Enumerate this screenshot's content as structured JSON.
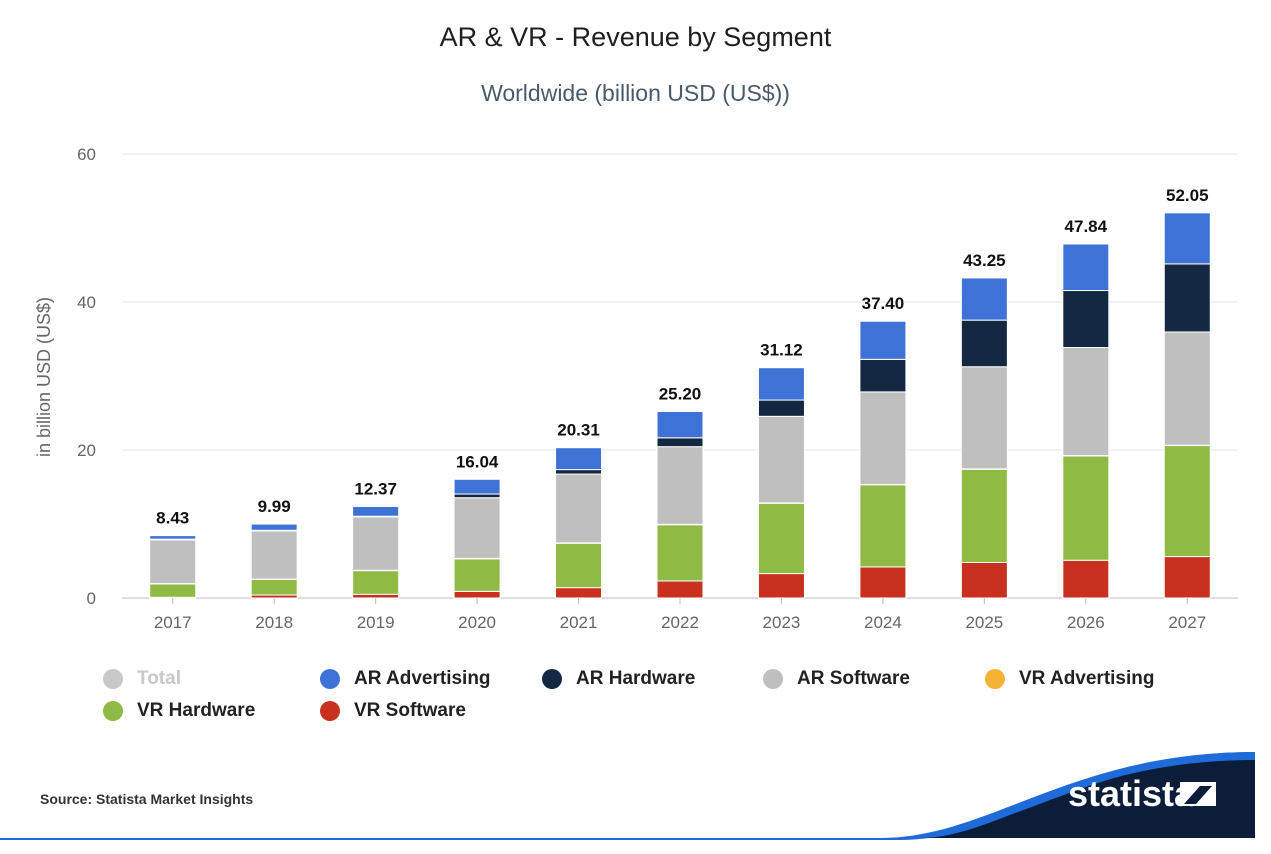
{
  "header": {
    "title": "AR & VR - Revenue by Segment",
    "subtitle": "Worldwide (billion USD (US$))"
  },
  "chart_data": {
    "type": "bar",
    "stacked": true,
    "categories": [
      "2017",
      "2018",
      "2019",
      "2020",
      "2021",
      "2022",
      "2023",
      "2024",
      "2025",
      "2026",
      "2027"
    ],
    "ylabel": "in billion USD (US$)",
    "ylim": [
      0,
      60
    ],
    "yticks": [
      0,
      20,
      40,
      60
    ],
    "grid": true,
    "legend_position": "bottom",
    "totals": [
      8.43,
      9.99,
      12.37,
      16.04,
      20.31,
      25.2,
      31.12,
      37.4,
      43.25,
      47.84,
      52.05
    ],
    "total_labels": [
      "8.43",
      "9.99",
      "12.37",
      "16.04",
      "20.31",
      "25.20",
      "31.12",
      "37.40",
      "43.25",
      "47.84",
      "52.05"
    ],
    "series": [
      {
        "name": "VR Software",
        "color": "#c8311f",
        "values": [
          0.1,
          0.4,
          0.5,
          0.9,
          1.4,
          2.3,
          3.3,
          4.2,
          4.8,
          5.1,
          5.6
        ]
      },
      {
        "name": "VR Hardware",
        "color": "#8fbb45",
        "values": [
          1.8,
          2.1,
          3.2,
          4.4,
          6.0,
          7.6,
          9.5,
          11.1,
          12.6,
          14.1,
          15.0
        ]
      },
      {
        "name": "VR Advertising",
        "color": "#f5b335",
        "values": [
          0.05,
          0.05,
          0.05,
          0.05,
          0.05,
          0.05,
          0.05,
          0.05,
          0.05,
          0.05,
          0.05
        ]
      },
      {
        "name": "AR Software",
        "color": "#bfbfbf",
        "values": [
          5.9,
          6.5,
          7.2,
          8.2,
          9.3,
          10.5,
          11.7,
          12.5,
          13.8,
          14.6,
          15.3
        ]
      },
      {
        "name": "AR Hardware",
        "color": "#142841",
        "values": [
          0.1,
          0.1,
          0.1,
          0.5,
          0.6,
          1.2,
          2.2,
          4.4,
          6.3,
          7.7,
          9.2
        ]
      },
      {
        "name": "AR Advertising",
        "color": "#3f72d6",
        "values": [
          0.48,
          0.84,
          1.32,
          1.99,
          2.96,
          3.55,
          4.37,
          5.15,
          5.7,
          6.29,
          6.9
        ]
      }
    ]
  },
  "legend": {
    "items": [
      {
        "label": "Total",
        "color": "#c8c8c8",
        "enabled": false
      },
      {
        "label": "AR Advertising",
        "color": "#3f72d6",
        "enabled": true
      },
      {
        "label": "AR Hardware",
        "color": "#142841",
        "enabled": true
      },
      {
        "label": "AR Software",
        "color": "#bfbfbf",
        "enabled": true
      },
      {
        "label": "VR Advertising",
        "color": "#f5b335",
        "enabled": true
      },
      {
        "label": "VR Hardware",
        "color": "#8fbb45",
        "enabled": true
      },
      {
        "label": "VR Software",
        "color": "#c8311f",
        "enabled": true
      }
    ]
  },
  "footer": {
    "source": "Source: Statista Market Insights",
    "logo_text": "statista",
    "brand_colors": {
      "blue": "#1f6bd9",
      "navy": "#0b1d38"
    }
  }
}
